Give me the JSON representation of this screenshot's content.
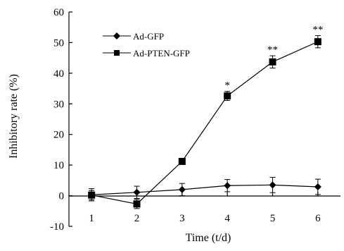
{
  "chart_data": {
    "type": "line",
    "title": "",
    "xlabel": "Time (t/d)",
    "ylabel": "Inhibitory rate (%)",
    "x": [
      1,
      2,
      3,
      4,
      5,
      6
    ],
    "xticks": [
      "1",
      "2",
      "3",
      "4",
      "5",
      "6"
    ],
    "xlim": [
      0.5,
      6.5
    ],
    "ylim": [
      -10,
      60
    ],
    "yticks": [
      -10,
      0,
      10,
      20,
      30,
      40,
      50,
      60
    ],
    "grid": false,
    "legend_position": "top-left",
    "series": [
      {
        "name": "Ad-GFP",
        "marker": "diamond",
        "color": "#000000",
        "values": [
          0.3,
          1.1,
          2.0,
          3.3,
          3.5,
          2.9
        ],
        "errors": [
          2.0,
          2.0,
          2.0,
          2.0,
          2.5,
          2.5
        ],
        "annotations": [
          "",
          "",
          "",
          "",
          "",
          ""
        ]
      },
      {
        "name": "Ad-PTEN-GFP",
        "marker": "square",
        "color": "#000000",
        "values": [
          0.2,
          -2.7,
          11.2,
          32.6,
          43.7,
          50.3
        ],
        "errors": [
          1.5,
          1.5,
          0.8,
          1.5,
          2.0,
          2.0
        ],
        "annotations": [
          "",
          "",
          "",
          "*",
          "**",
          "**"
        ]
      }
    ]
  }
}
